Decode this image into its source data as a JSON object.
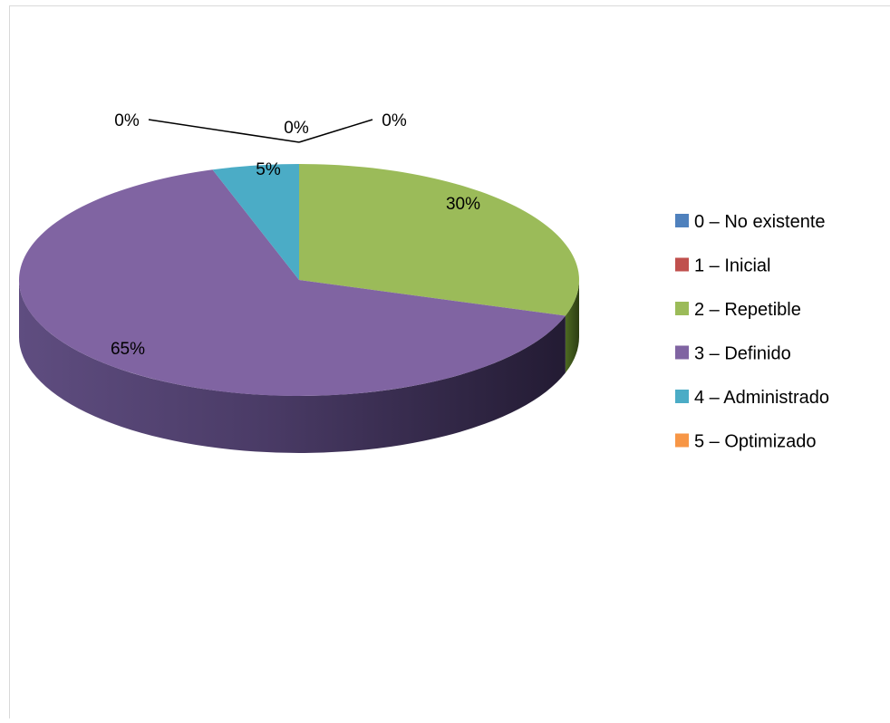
{
  "chart_data": {
    "type": "pie",
    "style": "3d",
    "categories": [
      "0 – No existente",
      "1 – Inicial",
      "2 – Repetible",
      "3 – Definido",
      "4 – Administrado",
      "5 –  Optimizado"
    ],
    "values": [
      0,
      0,
      30,
      65,
      5,
      0
    ],
    "data_labels": [
      "0%",
      "0%",
      "30%",
      "65%",
      "5%",
      "0%"
    ],
    "colors": [
      "#4f81bd",
      "#c0504d",
      "#9bbb59",
      "#8064a2",
      "#4bacc6",
      "#f79646"
    ],
    "legend_position": "right",
    "title": ""
  }
}
